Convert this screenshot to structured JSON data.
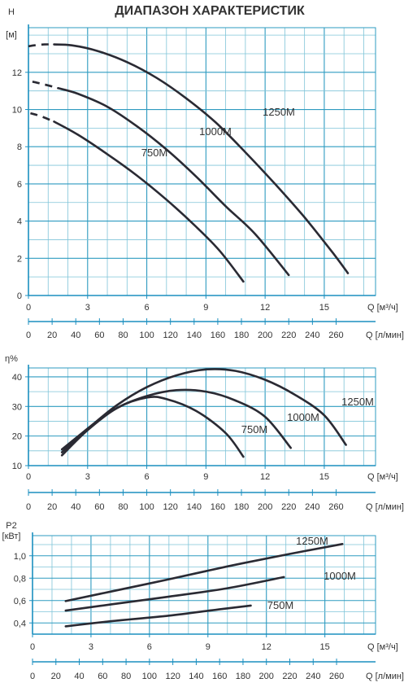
{
  "page_title": "ДИАПАЗОН ХАРАКТЕРИСТИК",
  "colors": {
    "grid_minor": "#7fc4d8",
    "grid_major": "#2e9bc0",
    "axis": "#1b8fbf",
    "curve": "#2a2a33",
    "text": "#333333"
  },
  "chart_data": [
    {
      "type": "line",
      "title": "",
      "ylabel": "H",
      "yunit": "[м]",
      "xlabel": "Q [м³/ч]",
      "x2label": "Q [л/мин]",
      "xlim": [
        0,
        17.6
      ],
      "ylim": [
        0,
        14.4
      ],
      "xticks": [
        0,
        3,
        6,
        9,
        12,
        15
      ],
      "yticks": [
        0,
        2,
        4,
        6,
        8,
        10,
        12
      ],
      "x2ticks": [
        0,
        20,
        40,
        60,
        80,
        100,
        120,
        140,
        160,
        180,
        200,
        220,
        240,
        260
      ],
      "grid": true,
      "series": [
        {
          "name": "1250M",
          "dashed": [
            [
              0,
              13.4
            ],
            [
              0.3,
              13.45
            ],
            [
              0.8,
              13.5
            ],
            [
              1.3,
              13.5
            ]
          ],
          "values": [
            [
              1.3,
              13.5
            ],
            [
              2.2,
              13.45
            ],
            [
              3.5,
              13.15
            ],
            [
              5,
              12.55
            ],
            [
              6.5,
              11.7
            ],
            [
              8,
              10.6
            ],
            [
              9.5,
              9.3
            ],
            [
              11,
              7.7
            ],
            [
              12.5,
              6.0
            ],
            [
              14,
              4.2
            ],
            [
              15.5,
              2.2
            ],
            [
              16.2,
              1.2
            ]
          ]
        },
        {
          "name": "1000M",
          "dashed": [
            [
              0.2,
              11.5
            ],
            [
              0.8,
              11.35
            ],
            [
              1.5,
              11.15
            ]
          ],
          "values": [
            [
              1.5,
              11.15
            ],
            [
              2.5,
              10.85
            ],
            [
              4,
              10.15
            ],
            [
              5.5,
              9.1
            ],
            [
              7,
              7.85
            ],
            [
              8.5,
              6.4
            ],
            [
              10,
              4.8
            ],
            [
              11.5,
              3.3
            ],
            [
              13.2,
              1.1
            ]
          ]
        },
        {
          "name": "750M",
          "dashed": [
            [
              0.1,
              9.8
            ],
            [
              0.6,
              9.65
            ],
            [
              1.3,
              9.35
            ]
          ],
          "values": [
            [
              1.3,
              9.35
            ],
            [
              2.5,
              8.65
            ],
            [
              4,
              7.6
            ],
            [
              5.5,
              6.45
            ],
            [
              7,
              5.15
            ],
            [
              8.5,
              3.7
            ],
            [
              9.7,
              2.4
            ],
            [
              10.9,
              0.75
            ]
          ]
        }
      ]
    },
    {
      "type": "line",
      "title": "",
      "ylabel": "η%",
      "xlabel": "Q [м³/ч]",
      "x2label": "Q [л/мин]",
      "xlim": [
        0,
        17.6
      ],
      "ylim": [
        10,
        43
      ],
      "xticks": [
        0,
        3,
        6,
        9,
        12,
        15
      ],
      "yticks": [
        10,
        20,
        30,
        40
      ],
      "x2ticks": [
        0,
        20,
        40,
        60,
        80,
        100,
        120,
        140,
        160,
        180,
        200,
        220,
        240,
        260
      ],
      "grid": true,
      "series": [
        {
          "name": "1250M",
          "values": [
            [
              1.7,
              15.5
            ],
            [
              3,
              22.5
            ],
            [
              4.5,
              30.5
            ],
            [
              6,
              36.5
            ],
            [
              7.5,
              40.5
            ],
            [
              9,
              42.5
            ],
            [
              10.5,
              42
            ],
            [
              12,
              39
            ],
            [
              13.5,
              34
            ],
            [
              15,
              27
            ],
            [
              16.1,
              17
            ]
          ]
        },
        {
          "name": "1000M",
          "values": [
            [
              1.7,
              14.5
            ],
            [
              3,
              22.5
            ],
            [
              4.5,
              29.5
            ],
            [
              6,
              33.5
            ],
            [
              7.5,
              35.5
            ],
            [
              9,
              35
            ],
            [
              10.5,
              32
            ],
            [
              12,
              26.5
            ],
            [
              13.3,
              16
            ]
          ]
        },
        {
          "name": "750M",
          "values": [
            [
              1.7,
              13.5
            ],
            [
              3,
              22
            ],
            [
              4.5,
              29.5
            ],
            [
              6,
              33
            ],
            [
              7,
              32.5
            ],
            [
              8.5,
              28.5
            ],
            [
              10,
              21
            ],
            [
              10.9,
              13
            ]
          ]
        }
      ]
    },
    {
      "type": "line",
      "title": "",
      "ylabel": "P2",
      "yunit": "[кВт]",
      "xlabel": "Q [м³/ч]",
      "x2label": "Q [л/мин]",
      "xlim": [
        0,
        17.6
      ],
      "ylim": [
        0.3,
        1.18
      ],
      "xticks": [
        0,
        3,
        6,
        9,
        12,
        15
      ],
      "yticks": [
        0.4,
        0.6,
        0.8,
        1.0
      ],
      "yticklabels": [
        "0,4",
        "0,6",
        "0,8",
        "1,0"
      ],
      "x2ticks": [
        0,
        20,
        40,
        60,
        80,
        100,
        120,
        140,
        160,
        180,
        200,
        220,
        240,
        260
      ],
      "grid": true,
      "series": [
        {
          "name": "1250M",
          "values": [
            [
              1.7,
              0.595
            ],
            [
              4,
              0.68
            ],
            [
              7,
              0.79
            ],
            [
              10,
              0.905
            ],
            [
              13,
              1.01
            ],
            [
              15.9,
              1.105
            ]
          ]
        },
        {
          "name": "1000M",
          "values": [
            [
              1.7,
              0.51
            ],
            [
              4,
              0.565
            ],
            [
              7,
              0.635
            ],
            [
              10,
              0.71
            ],
            [
              12.9,
              0.81
            ]
          ]
        },
        {
          "name": "750M",
          "values": [
            [
              1.7,
              0.37
            ],
            [
              4,
              0.415
            ],
            [
              7,
              0.465
            ],
            [
              9.5,
              0.52
            ],
            [
              11.2,
              0.555
            ]
          ]
        }
      ]
    }
  ]
}
